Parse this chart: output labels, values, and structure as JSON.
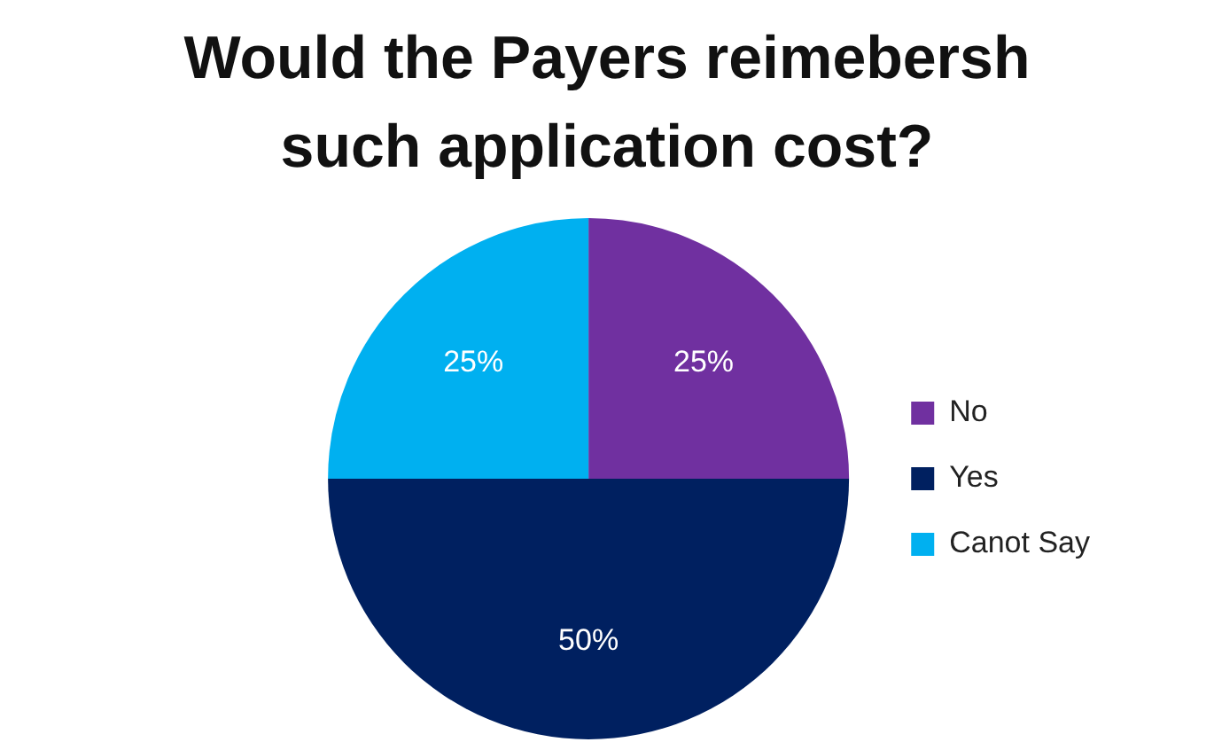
{
  "chart_data": {
    "type": "pie",
    "title": "Would the Payers reimebersh such application cost?",
    "categories": [
      "No",
      "Yes",
      "Canot Say"
    ],
    "values": [
      25,
      50,
      25
    ],
    "colors": [
      "#7030a0",
      "#002060",
      "#00b0f0"
    ],
    "value_labels": [
      "25%",
      "50%",
      "25%"
    ],
    "legend": "right"
  }
}
